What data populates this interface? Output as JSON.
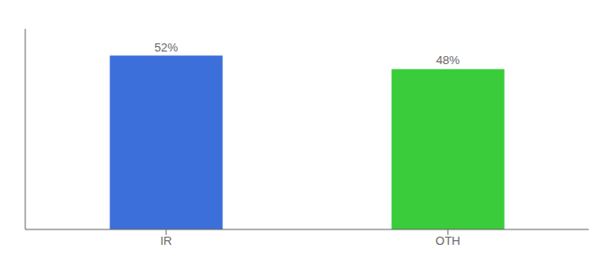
{
  "chart_data": {
    "type": "bar",
    "categories": [
      "IR",
      "OTH"
    ],
    "values": [
      52,
      48
    ],
    "value_labels": [
      "52%",
      "48%"
    ],
    "colors": [
      "#3d6fdb",
      "#3acc3a"
    ],
    "ylim": [
      0,
      60
    ],
    "data_labels": true,
    "tick_labels": "x"
  }
}
